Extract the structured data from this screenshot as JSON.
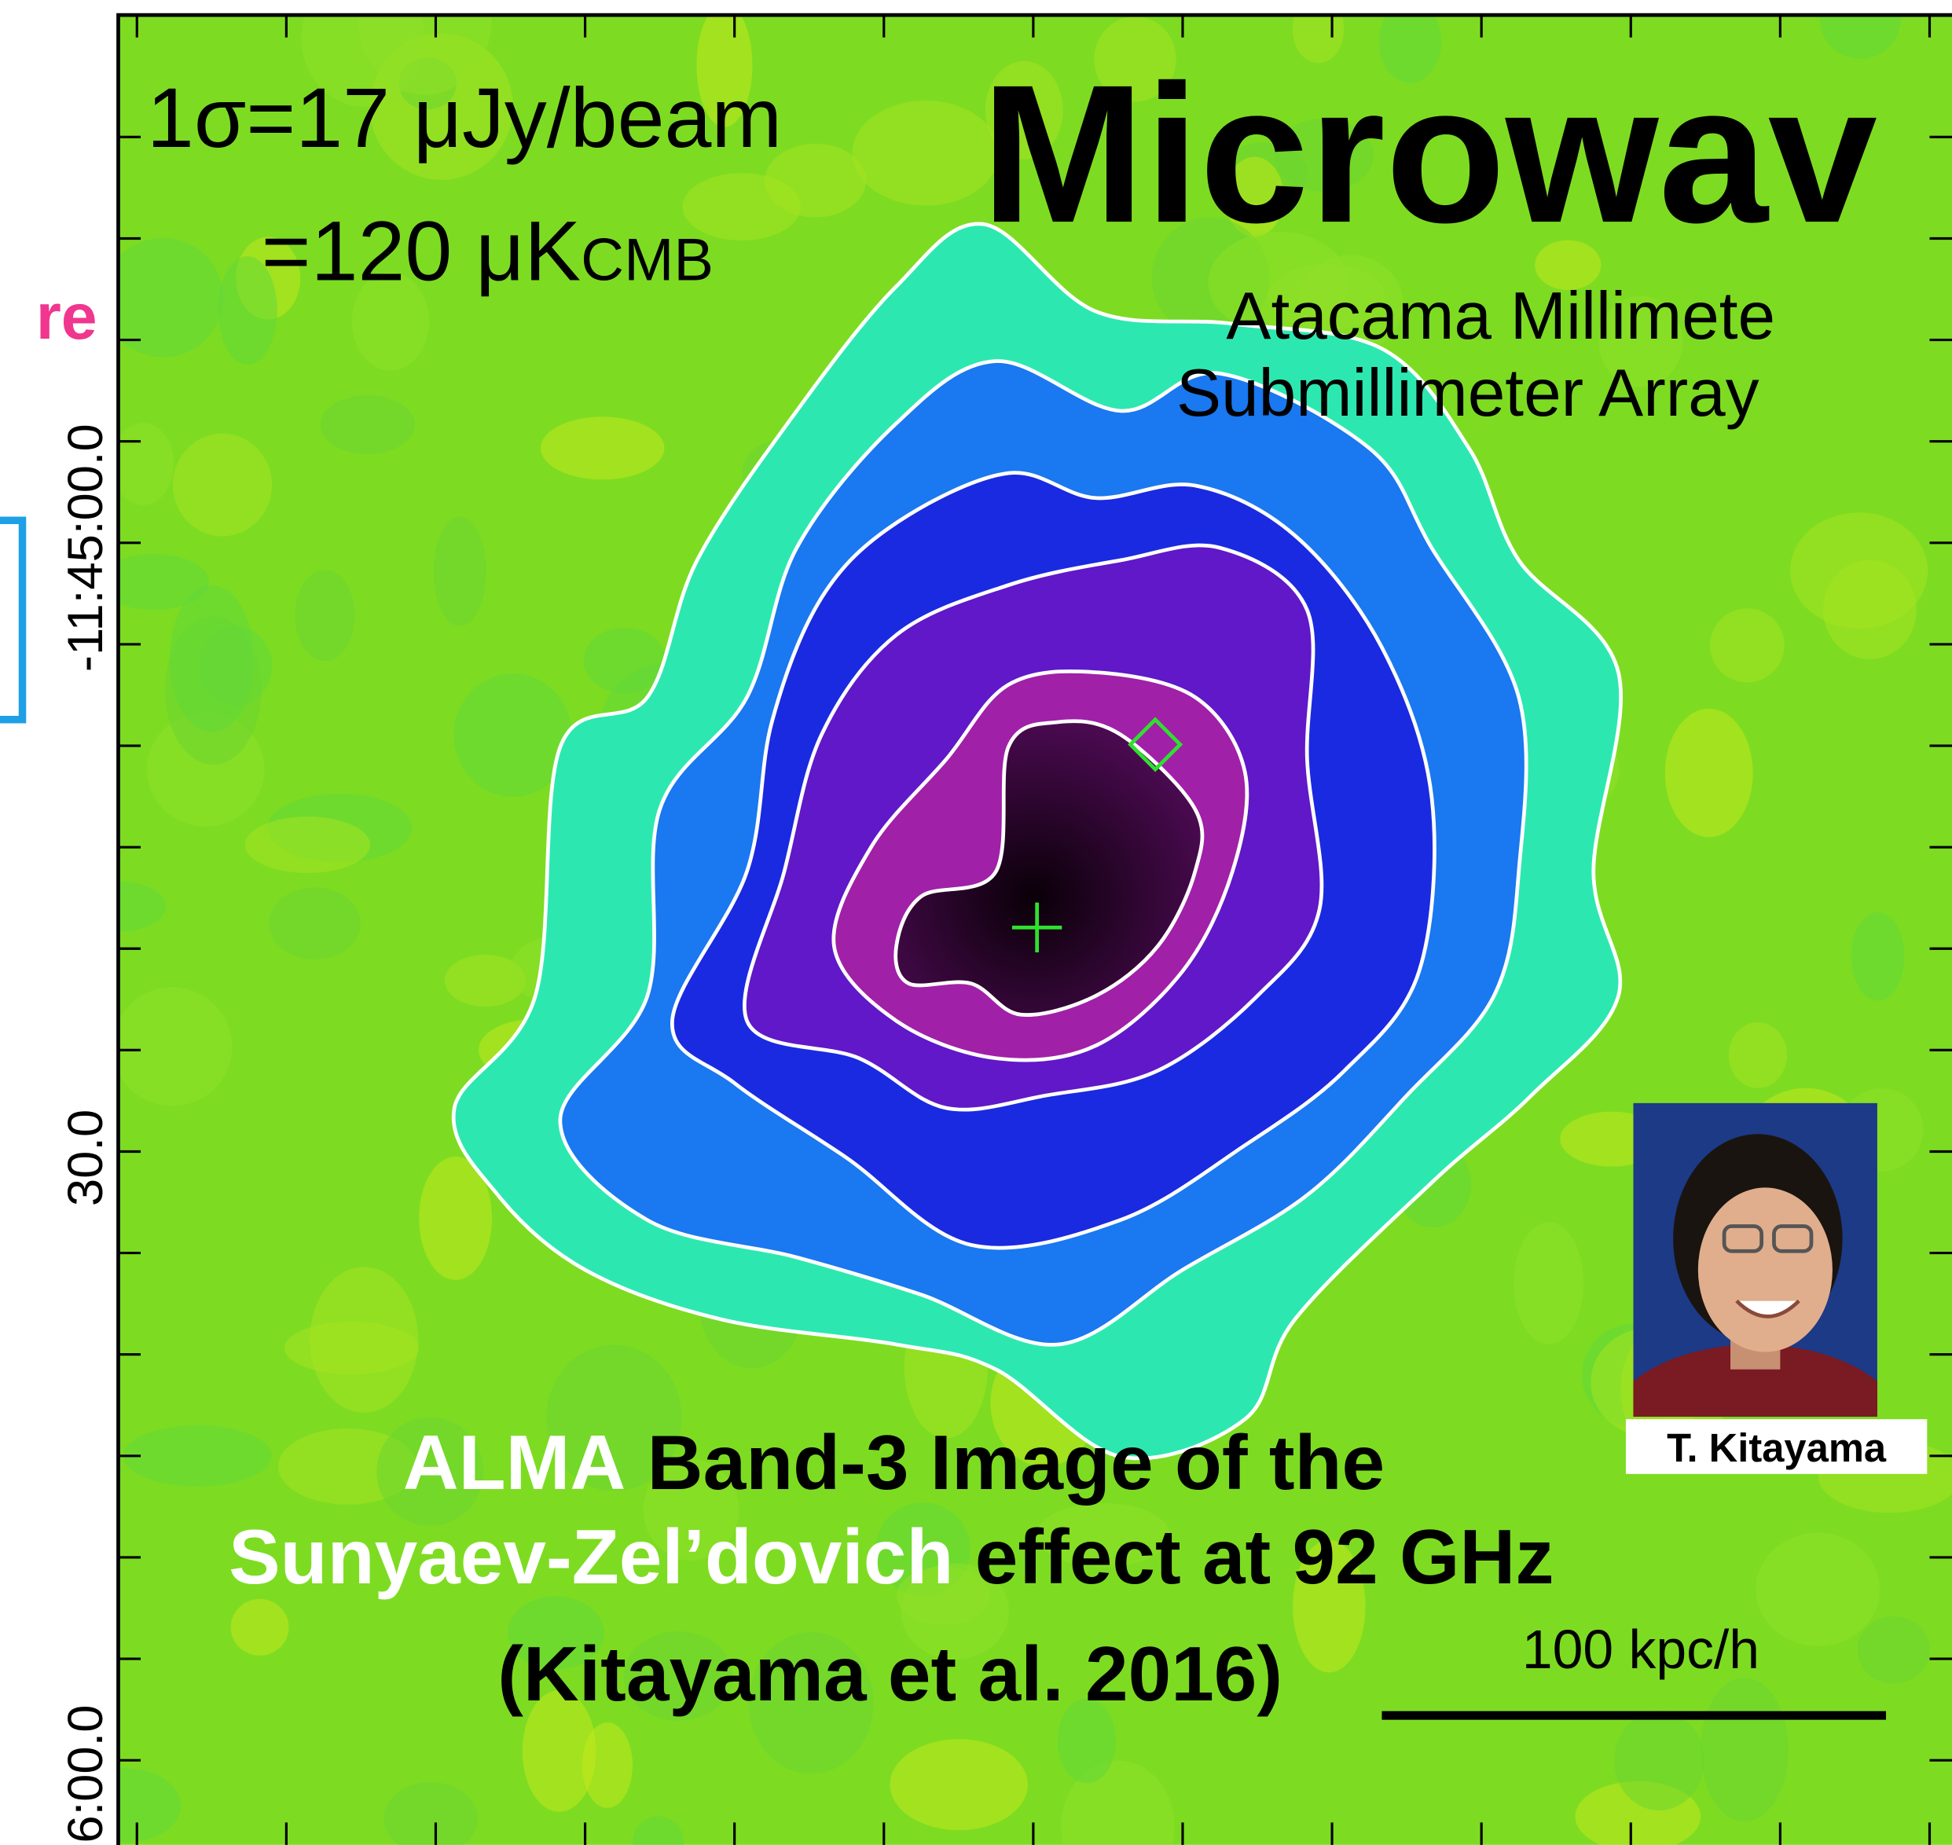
{
  "slide": {
    "cut_heading": "re",
    "axis_labels": [
      "-11:45:00.0",
      "30.0",
      "6:00.0"
    ],
    "noise": {
      "line1": "1σ=17 μJy/beam",
      "line2": "=120 μK",
      "line2_sub": "CMB"
    },
    "title": "Microwav",
    "subtitle": [
      "Atacama Millimete",
      "Submillimeter Array"
    ],
    "caption": {
      "line1_white": "ALMA",
      "line1_black": "Band-3 Image of the",
      "line2_white": "Sunyaev-Zel’dovich",
      "line2_black": "effect at 92 GHz",
      "line3": "(Kitayama et al. 2016)"
    },
    "scale_bar": "100 kpc/h",
    "photo_caption": "T. Kitayama"
  }
}
